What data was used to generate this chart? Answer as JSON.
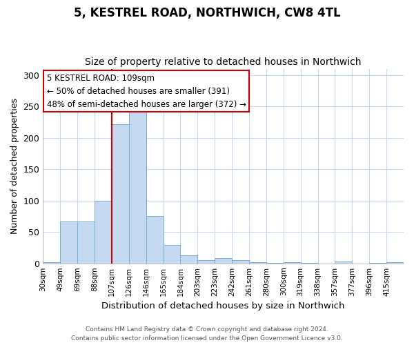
{
  "title1": "5, KESTREL ROAD, NORTHWICH, CW8 4TL",
  "title2": "Size of property relative to detached houses in Northwich",
  "xlabel": "Distribution of detached houses by size in Northwich",
  "ylabel": "Number of detached properties",
  "bar_labels": [
    "30sqm",
    "49sqm",
    "69sqm",
    "88sqm",
    "107sqm",
    "126sqm",
    "146sqm",
    "165sqm",
    "184sqm",
    "203sqm",
    "223sqm",
    "242sqm",
    "261sqm",
    "280sqm",
    "300sqm",
    "319sqm",
    "338sqm",
    "357sqm",
    "377sqm",
    "396sqm",
    "415sqm"
  ],
  "bar_values": [
    2,
    67,
    67,
    100,
    222,
    243,
    76,
    29,
    13,
    5,
    8,
    5,
    2,
    1,
    2,
    1,
    0,
    3,
    0,
    1,
    2
  ],
  "bar_color": "#c5d9f0",
  "bar_edgecolor": "#7aaddb",
  "red_line_x": 4.0,
  "red_line_color": "#cc0000",
  "annotation_title": "5 KESTREL ROAD: 109sqm",
  "annotation_line1": "← 50% of detached houses are smaller (391)",
  "annotation_line2": "48% of semi-detached houses are larger (372) →",
  "annotation_box_facecolor": "#ffffff",
  "annotation_box_edgecolor": "#cc0000",
  "background_color": "#ffffff",
  "grid_color": "#c8d8f0",
  "ylim": [
    0,
    310
  ],
  "yticks": [
    0,
    50,
    100,
    150,
    200,
    250,
    300
  ],
  "footnote1": "Contains HM Land Registry data © Crown copyright and database right 2024.",
  "footnote2": "Contains public sector information licensed under the Open Government Licence v3.0."
}
